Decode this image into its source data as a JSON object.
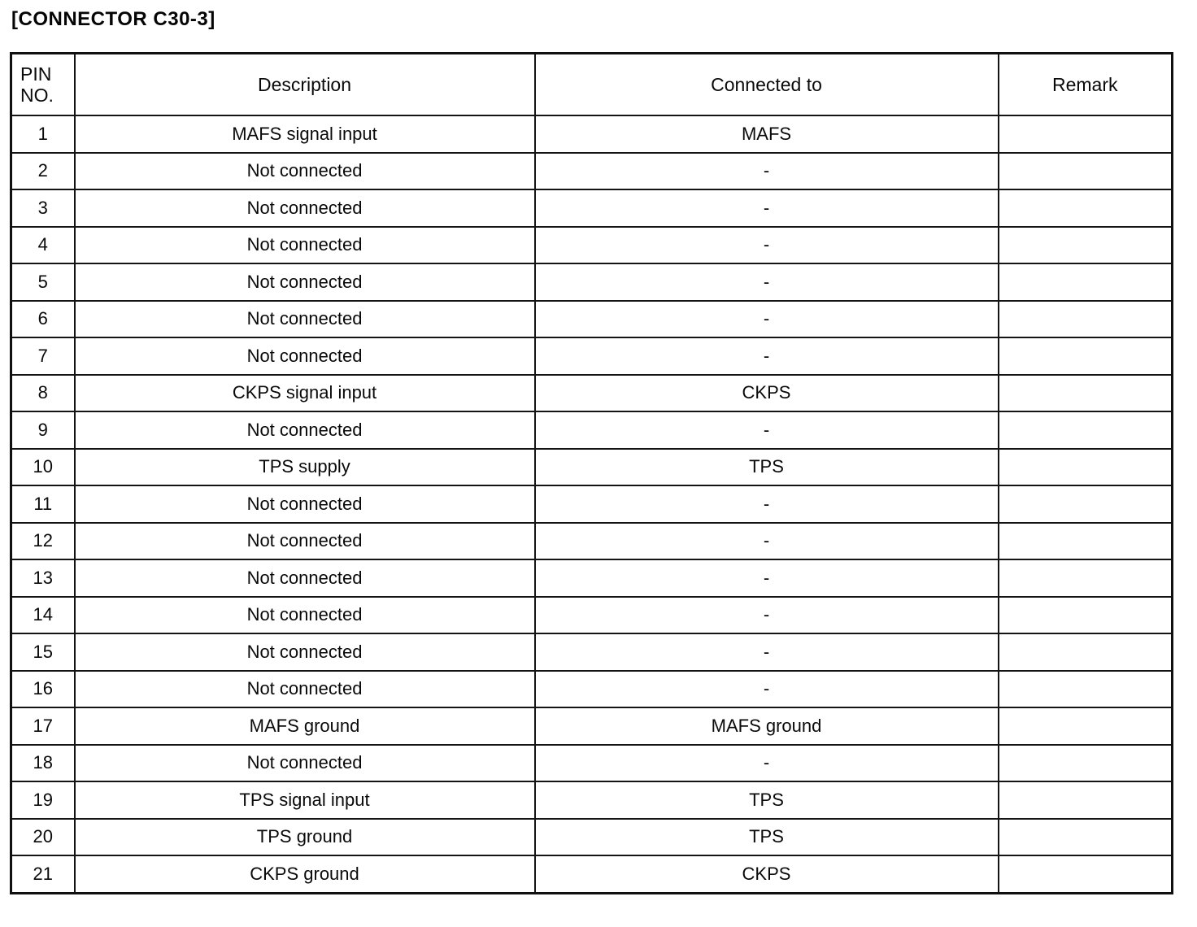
{
  "page_title": "[CONNECTOR C30-3]",
  "table": {
    "header": {
      "pin_line1": "PIN",
      "pin_line2": "NO.",
      "description": "Description",
      "connected_to": "Connected to",
      "remark": "Remark"
    },
    "rows": [
      {
        "pin": "1",
        "description": "MAFS signal input",
        "connected_to": "MAFS",
        "remark": ""
      },
      {
        "pin": "2",
        "description": "Not connected",
        "connected_to": "-",
        "remark": ""
      },
      {
        "pin": "3",
        "description": "Not connected",
        "connected_to": "-",
        "remark": ""
      },
      {
        "pin": "4",
        "description": "Not connected",
        "connected_to": "-",
        "remark": ""
      },
      {
        "pin": "5",
        "description": "Not connected",
        "connected_to": "-",
        "remark": ""
      },
      {
        "pin": "6",
        "description": "Not connected",
        "connected_to": "-",
        "remark": ""
      },
      {
        "pin": "7",
        "description": "Not connected",
        "connected_to": "-",
        "remark": ""
      },
      {
        "pin": "8",
        "description": "CKPS signal input",
        "connected_to": "CKPS",
        "remark": ""
      },
      {
        "pin": "9",
        "description": "Not connected",
        "connected_to": "-",
        "remark": ""
      },
      {
        "pin": "10",
        "description": "TPS supply",
        "connected_to": "TPS",
        "remark": ""
      },
      {
        "pin": "11",
        "description": "Not connected",
        "connected_to": "-",
        "remark": ""
      },
      {
        "pin": "12",
        "description": "Not connected",
        "connected_to": "-",
        "remark": ""
      },
      {
        "pin": "13",
        "description": "Not connected",
        "connected_to": "-",
        "remark": ""
      },
      {
        "pin": "14",
        "description": "Not connected",
        "connected_to": "-",
        "remark": ""
      },
      {
        "pin": "15",
        "description": "Not connected",
        "connected_to": "-",
        "remark": ""
      },
      {
        "pin": "16",
        "description": "Not connected",
        "connected_to": "-",
        "remark": ""
      },
      {
        "pin": "17",
        "description": "MAFS ground",
        "connected_to": "MAFS ground",
        "remark": ""
      },
      {
        "pin": "18",
        "description": "Not connected",
        "connected_to": "-",
        "remark": ""
      },
      {
        "pin": "19",
        "description": "TPS signal input",
        "connected_to": "TPS",
        "remark": ""
      },
      {
        "pin": "20",
        "description": "TPS ground",
        "connected_to": "TPS",
        "remark": ""
      },
      {
        "pin": "21",
        "description": "CKPS ground",
        "connected_to": "CKPS",
        "remark": ""
      }
    ]
  }
}
